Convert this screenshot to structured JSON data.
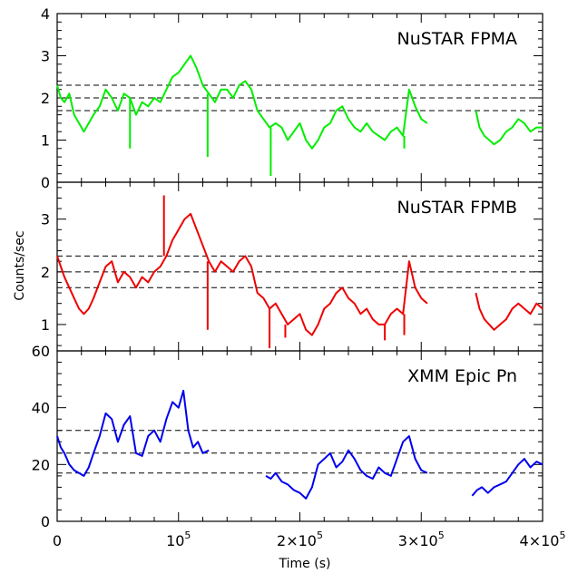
{
  "chart_data": {
    "type": "line",
    "xlabel": "Time (s)",
    "ylabel": "Counts/sec",
    "xlim": [
      0,
      400000
    ],
    "x_ticks": [
      {
        "value": 0,
        "base": "0",
        "exp": ""
      },
      {
        "value": 100000,
        "base": "10",
        "exp": "5"
      },
      {
        "value": 200000,
        "base": "2×10",
        "exp": "5"
      },
      {
        "value": 300000,
        "base": "3×10",
        "exp": "5"
      },
      {
        "value": 400000,
        "base": "4×10",
        "exp": "5"
      }
    ],
    "panels": [
      {
        "title": "NuSTAR FPMA",
        "color": "#00ee00",
        "ylim": [
          0,
          4
        ],
        "y_ticks": [
          "0",
          "1",
          "2",
          "3",
          "4"
        ],
        "y_tick_values": [
          0,
          1,
          2,
          3,
          4
        ],
        "reference_lines": [
          2.3,
          2.0,
          1.7
        ],
        "segments": [
          {
            "x": [
              0,
              3000,
              6000,
              10000,
              14000,
              18000,
              22000,
              26000,
              30000,
              35000,
              40000,
              45000,
              50000,
              55000,
              60000,
              65000,
              70000,
              75000,
              80000,
              85000,
              90000,
              95000,
              100000,
              105000,
              110000,
              115000,
              120000,
              125000,
              130000,
              135000,
              140000,
              145000,
              150000,
              155000,
              160000,
              165000,
              170000,
              175000,
              180000,
              185000,
              190000,
              195000,
              200000,
              205000,
              210000,
              215000,
              220000,
              225000,
              230000,
              235000,
              240000,
              245000,
              250000,
              255000,
              260000,
              265000,
              270000,
              275000,
              280000,
              285000,
              290000,
              295000,
              300000,
              305000
            ],
            "y": [
              2.3,
              2.0,
              1.9,
              2.1,
              1.6,
              1.4,
              1.2,
              1.4,
              1.6,
              1.8,
              2.2,
              2.0,
              1.7,
              2.1,
              2.0,
              1.6,
              1.9,
              1.8,
              2.0,
              1.9,
              2.2,
              2.5,
              2.6,
              2.8,
              3.0,
              2.7,
              2.3,
              2.1,
              1.9,
              2.2,
              2.2,
              2.0,
              2.3,
              2.4,
              2.2,
              1.7,
              1.5,
              1.3,
              1.4,
              1.3,
              1.0,
              1.2,
              1.4,
              1.0,
              0.8,
              1.0,
              1.3,
              1.4,
              1.7,
              1.8,
              1.5,
              1.3,
              1.2,
              1.4,
              1.2,
              1.1,
              1.0,
              1.2,
              1.3,
              1.1,
              2.2,
              1.8,
              1.5,
              1.4
            ]
          },
          {
            "x": [
              345000,
              348000,
              352000,
              356000,
              360000,
              365000,
              370000,
              375000,
              380000,
              385000,
              390000,
              395000,
              400000
            ],
            "y": [
              1.7,
              1.3,
              1.1,
              1.0,
              0.9,
              1.0,
              1.2,
              1.3,
              1.5,
              1.4,
              1.2,
              1.3,
              1.3
            ]
          }
        ],
        "spikes": [
          {
            "x": 60000,
            "y": 0.8
          },
          {
            "x": 124000,
            "y": 0.6
          },
          {
            "x": 176000,
            "y": 0.15
          },
          {
            "x": 286000,
            "y": 0.8
          }
        ]
      },
      {
        "title": "NuSTAR FPMB",
        "color": "#ee0000",
        "ylim": [
          0.5,
          3.7
        ],
        "y_ticks": [
          "1",
          "2",
          "3"
        ],
        "y_tick_values": [
          1,
          2,
          3
        ],
        "reference_lines": [
          2.3,
          2.0,
          1.7
        ],
        "segments": [
          {
            "x": [
              0,
              3000,
              6000,
              10000,
              14000,
              18000,
              22000,
              26000,
              30000,
              35000,
              40000,
              45000,
              50000,
              55000,
              60000,
              65000,
              70000,
              75000,
              80000,
              85000,
              90000,
              95000,
              100000,
              105000,
              110000,
              115000,
              120000,
              125000,
              130000,
              135000,
              140000,
              145000,
              150000,
              155000,
              160000,
              165000,
              170000,
              175000,
              180000,
              185000,
              190000,
              195000,
              200000,
              205000,
              210000,
              215000,
              220000,
              225000,
              230000,
              235000,
              240000,
              245000,
              250000,
              255000,
              260000,
              265000,
              270000,
              275000,
              280000,
              285000,
              290000,
              295000,
              300000,
              305000
            ],
            "y": [
              2.3,
              2.1,
              1.9,
              1.7,
              1.5,
              1.3,
              1.2,
              1.3,
              1.5,
              1.8,
              2.1,
              2.2,
              1.8,
              2.0,
              1.9,
              1.7,
              1.9,
              1.8,
              2.0,
              2.1,
              2.3,
              2.6,
              2.8,
              3.0,
              3.1,
              2.8,
              2.5,
              2.2,
              2.0,
              2.2,
              2.1,
              2.0,
              2.2,
              2.3,
              2.1,
              1.6,
              1.5,
              1.3,
              1.4,
              1.2,
              1.0,
              1.1,
              1.2,
              0.9,
              0.8,
              1.0,
              1.3,
              1.4,
              1.6,
              1.7,
              1.5,
              1.4,
              1.2,
              1.3,
              1.1,
              1.0,
              1.0,
              1.2,
              1.3,
              1.2,
              2.2,
              1.7,
              1.5,
              1.4
            ]
          },
          {
            "x": [
              345000,
              348000,
              352000,
              356000,
              360000,
              365000,
              370000,
              375000,
              380000,
              385000,
              390000,
              395000,
              400000
            ],
            "y": [
              1.6,
              1.3,
              1.1,
              1.0,
              0.9,
              1.0,
              1.1,
              1.3,
              1.4,
              1.3,
              1.2,
              1.4,
              1.3
            ]
          }
        ],
        "spikes": [
          {
            "x": 88000,
            "y": 3.45
          },
          {
            "x": 124000,
            "y": 0.9
          },
          {
            "x": 175000,
            "y": 0.55
          },
          {
            "x": 188000,
            "y": 0.75
          },
          {
            "x": 270000,
            "y": 0.7
          },
          {
            "x": 286000,
            "y": 0.8
          }
        ]
      },
      {
        "title": "XMM Epic Pn",
        "color": "#0000ee",
        "ylim": [
          0,
          60
        ],
        "y_ticks": [
          "0",
          "20",
          "40",
          "60"
        ],
        "y_tick_values": [
          0,
          20,
          40,
          60
        ],
        "reference_lines": [
          32,
          24,
          17
        ],
        "segments": [
          {
            "x": [
              0,
              3000,
              6000,
              10000,
              14000,
              18000,
              22000,
              26000,
              30000,
              35000,
              40000,
              45000,
              50000,
              55000,
              60000,
              65000,
              70000,
              75000,
              80000,
              85000,
              90000,
              95000,
              100000,
              104000,
              108000,
              112000,
              116000,
              120000,
              125000
            ],
            "y": [
              30,
              26,
              24,
              20,
              18,
              17,
              16,
              19,
              24,
              30,
              38,
              36,
              28,
              34,
              37,
              24,
              23,
              30,
              32,
              28,
              36,
              42,
              40,
              46,
              32,
              26,
              28,
              24,
              25
            ]
          },
          {
            "x": [
              172000,
              176000,
              180000,
              185000,
              190000,
              195000,
              200000,
              205000,
              210000,
              215000,
              220000,
              225000,
              230000,
              235000,
              240000,
              245000,
              250000,
              255000,
              260000,
              265000,
              270000,
              275000,
              280000,
              285000,
              290000,
              295000,
              300000,
              305000
            ],
            "y": [
              16,
              15,
              17,
              14,
              13,
              11,
              10,
              8,
              12,
              20,
              22,
              24,
              19,
              21,
              25,
              22,
              18,
              16,
              15,
              19,
              17,
              16,
              22,
              28,
              30,
              22,
              18,
              17
            ]
          },
          {
            "x": [
              342000,
              346000,
              350000,
              355000,
              360000,
              365000,
              370000,
              375000,
              380000,
              385000,
              390000,
              395000,
              400000
            ],
            "y": [
              9,
              11,
              12,
              10,
              12,
              13,
              14,
              17,
              20,
              22,
              19,
              21,
              20
            ]
          }
        ],
        "spikes": []
      }
    ]
  }
}
